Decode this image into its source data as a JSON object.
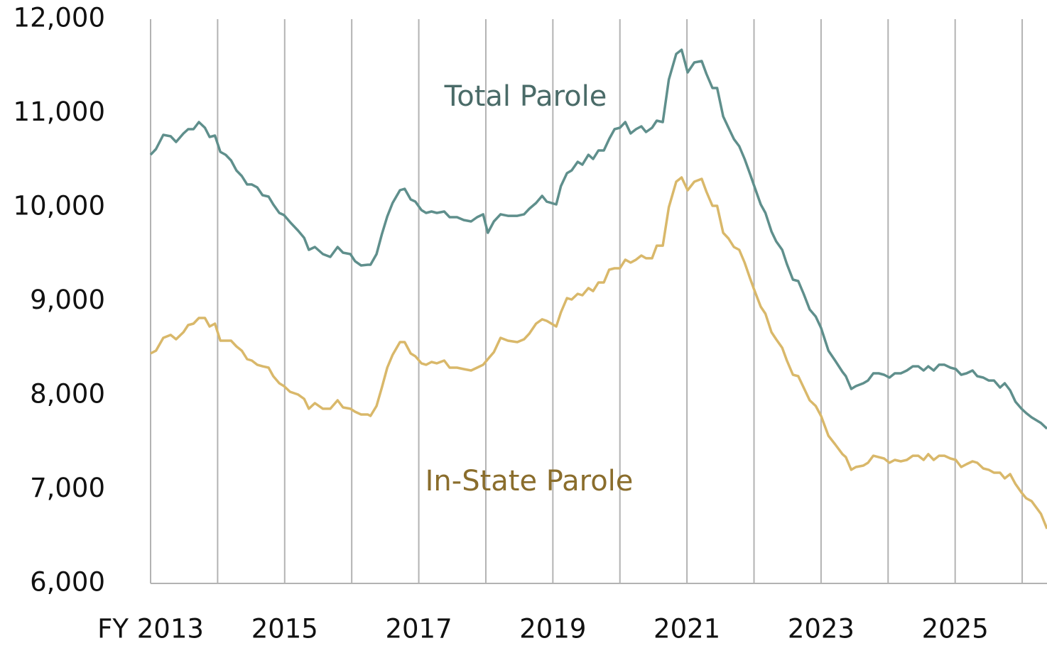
{
  "chart_data": {
    "type": "line",
    "x": [
      2013,
      2013.08,
      2013.19,
      2013.3,
      2013.38,
      2013.49,
      2013.56,
      2013.64,
      2013.72,
      2013.81,
      2013.88,
      2013.96,
      2014.04,
      2014.12,
      2014.2,
      2014.28,
      2014.36,
      2014.44,
      2014.51,
      2014.59,
      2014.67,
      2014.76,
      2014.83,
      2014.92,
      2014.99,
      2015.08,
      2015.2,
      2015.29,
      2015.36,
      2015.45,
      2015.57,
      2015.68,
      2015.79,
      2015.87,
      2015.98,
      2016.05,
      2016.14,
      2016.24,
      2016.28,
      2016.37,
      2016.45,
      2016.53,
      2016.61,
      2016.72,
      2016.79,
      2016.88,
      2016.95,
      2017.04,
      2017.11,
      2017.19,
      2017.27,
      2017.38,
      2017.46,
      2017.57,
      2017.67,
      2017.78,
      2017.87,
      2017.96,
      2018.03,
      2018.12,
      2018.22,
      2018.33,
      2018.47,
      2018.57,
      2018.65,
      2018.75,
      2018.84,
      2018.91,
      2019.05,
      2019.12,
      2019.21,
      2019.28,
      2019.37,
      2019.44,
      2019.53,
      2019.6,
      2019.68,
      2019.76,
      2019.84,
      2019.92,
      2020,
      2020.08,
      2020.16,
      2020.24,
      2020.32,
      2020.39,
      2020.48,
      2020.55,
      2020.64,
      2020.73,
      2020.84,
      2020.92,
      2021.01,
      2021.11,
      2021.22,
      2021.29,
      2021.38,
      2021.45,
      2021.54,
      2021.62,
      2021.7,
      2021.78,
      2021.86,
      2021.94,
      2022.01,
      2022.1,
      2022.17,
      2022.26,
      2022.33,
      2022.42,
      2022.49,
      2022.58,
      2022.66,
      2022.74,
      2022.83,
      2022.92,
      2023,
      2023.11,
      2023.21,
      2023.32,
      2023.37,
      2023.45,
      2023.52,
      2023.63,
      2023.7,
      2023.78,
      2023.86,
      2023.94,
      2024.02,
      2024.1,
      2024.19,
      2024.28,
      2024.37,
      2024.45,
      2024.53,
      2024.6,
      2024.68,
      2024.76,
      2024.84,
      2024.93,
      2025.01,
      2025.09,
      2025.17,
      2025.26,
      2025.33,
      2025.42,
      2025.5,
      2025.58,
      2025.67,
      2025.74,
      2025.82,
      2025.9,
      2025.99,
      2026.06,
      2026.14,
      2026.28,
      2026.37
    ],
    "series": [
      {
        "name": "Total Parole",
        "color": "#5f8f8c",
        "label_color": "#4a6b68",
        "values": [
          10558,
          10619,
          10770,
          10755,
          10694,
          10785,
          10830,
          10830,
          10906,
          10845,
          10747,
          10762,
          10589,
          10558,
          10498,
          10392,
          10332,
          10242,
          10242,
          10211,
          10128,
          10113,
          10030,
          9940,
          9917,
          9842,
          9751,
          9675,
          9547,
          9577,
          9502,
          9472,
          9577,
          9517,
          9502,
          9426,
          9381,
          9389,
          9389,
          9502,
          9713,
          9902,
          10045,
          10181,
          10196,
          10083,
          10060,
          9970,
          9940,
          9955,
          9940,
          9955,
          9894,
          9894,
          9864,
          9849,
          9894,
          9925,
          9728,
          9849,
          9925,
          9909,
          9909,
          9925,
          9985,
          10045,
          10121,
          10060,
          10030,
          10226,
          10362,
          10392,
          10483,
          10453,
          10558,
          10513,
          10604,
          10604,
          10725,
          10830,
          10845,
          10906,
          10785,
          10830,
          10860,
          10800,
          10845,
          10921,
          10906,
          11358,
          11630,
          11675,
          11434,
          11540,
          11555,
          11419,
          11268,
          11268,
          10966,
          10845,
          10725,
          10649,
          10513,
          10355,
          10211,
          10030,
          9940,
          9743,
          9638,
          9547,
          9396,
          9230,
          9215,
          9079,
          8913,
          8838,
          8717,
          8475,
          8370,
          8249,
          8204,
          8068,
          8098,
          8128,
          8158,
          8234,
          8234,
          8219,
          8189,
          8234,
          8234,
          8264,
          8309,
          8309,
          8264,
          8309,
          8264,
          8325,
          8325,
          8294,
          8279,
          8219,
          8234,
          8264,
          8204,
          8189,
          8158,
          8158,
          8083,
          8128,
          8053,
          7932,
          7857,
          7811,
          7766,
          7706,
          7645
        ]
      },
      {
        "name": "In-State Parole",
        "color": "#d9b86a",
        "label_color": "#8a6d2c",
        "values": [
          8445,
          8475,
          8611,
          8642,
          8596,
          8672,
          8747,
          8762,
          8823,
          8823,
          8732,
          8762,
          8581,
          8581,
          8581,
          8521,
          8475,
          8385,
          8370,
          8325,
          8309,
          8294,
          8204,
          8128,
          8098,
          8038,
          8008,
          7962,
          7857,
          7917,
          7857,
          7857,
          7947,
          7872,
          7857,
          7826,
          7796,
          7796,
          7781,
          7887,
          8083,
          8294,
          8430,
          8566,
          8566,
          8445,
          8415,
          8340,
          8325,
          8355,
          8340,
          8370,
          8294,
          8294,
          8279,
          8264,
          8294,
          8325,
          8385,
          8460,
          8611,
          8581,
          8566,
          8596,
          8657,
          8762,
          8808,
          8792,
          8732,
          8883,
          9034,
          9019,
          9079,
          9064,
          9140,
          9109,
          9200,
          9200,
          9336,
          9351,
          9351,
          9442,
          9411,
          9442,
          9487,
          9457,
          9457,
          9592,
          9592,
          10000,
          10272,
          10317,
          10181,
          10272,
          10302,
          10166,
          10015,
          10015,
          9728,
          9668,
          9577,
          9547,
          9411,
          9245,
          9109,
          8943,
          8868,
          8672,
          8596,
          8506,
          8370,
          8219,
          8204,
          8083,
          7947,
          7887,
          7781,
          7570,
          7479,
          7374,
          7343,
          7208,
          7238,
          7253,
          7283,
          7358,
          7343,
          7328,
          7283,
          7313,
          7298,
          7313,
          7358,
          7358,
          7313,
          7374,
          7313,
          7358,
          7358,
          7328,
          7313,
          7238,
          7268,
          7298,
          7283,
          7223,
          7208,
          7177,
          7177,
          7117,
          7162,
          7057,
          6966,
          6906,
          6875,
          6740,
          6581
        ]
      }
    ],
    "xlim": [
      2013,
      2026.37
    ],
    "xticks": [
      {
        "value": 2013,
        "label": "FY 2013"
      },
      2015,
      2017,
      2019,
      2021,
      2023,
      2025
    ],
    "xgrid": [
      2013,
      2014,
      2015,
      2016,
      2017,
      2018,
      2019,
      2020,
      2021,
      2022,
      2023,
      2024,
      2025,
      2026
    ],
    "ylim": [
      6000,
      12000
    ],
    "yticks": [
      {
        "value": 6000,
        "label": "6,000"
      },
      {
        "value": 7000,
        "label": "7,000"
      },
      {
        "value": 8000,
        "label": "8,000"
      },
      {
        "value": 9000,
        "label": "9,000"
      },
      {
        "value": 10000,
        "label": "10,000"
      },
      {
        "value": 11000,
        "label": "11,000"
      },
      {
        "value": 12000,
        "label": "12,000"
      }
    ],
    "legend": "inline"
  }
}
